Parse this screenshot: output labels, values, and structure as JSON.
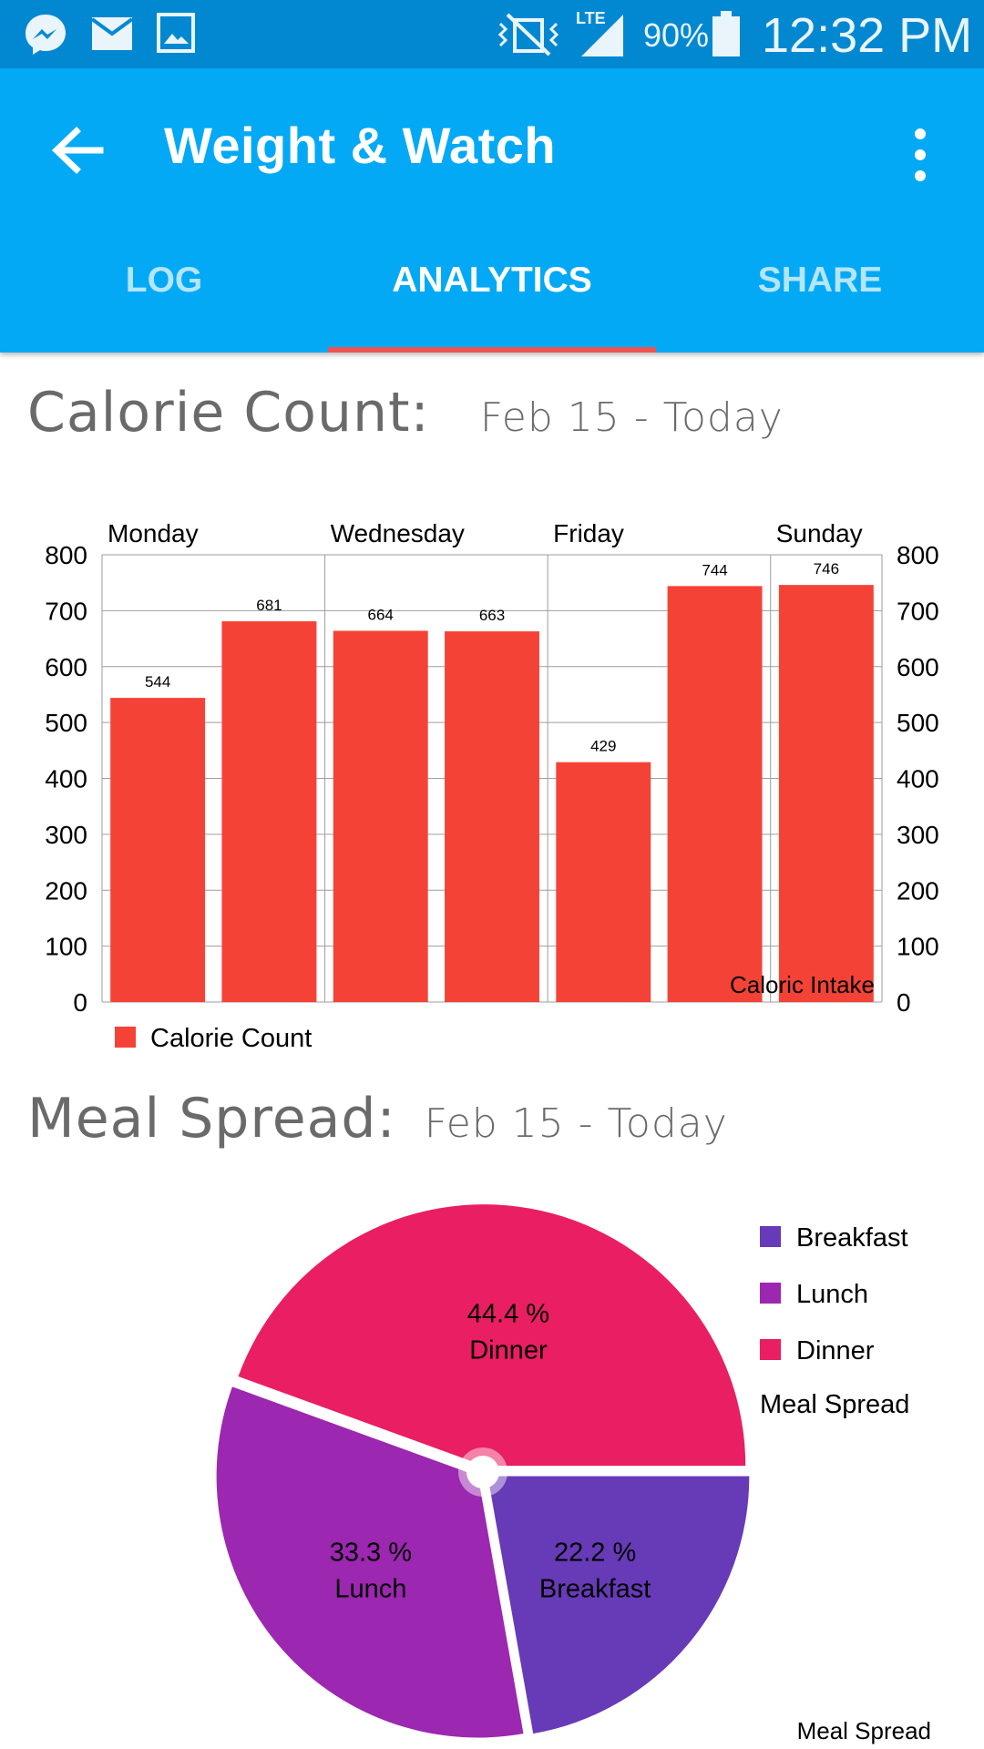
{
  "status_bar": {
    "battery": "90%",
    "time": "12:32 PM",
    "network": "LTE",
    "icons": [
      "messenger-icon",
      "mail-icon",
      "image-icon",
      "vibrate-icon",
      "signal-icon",
      "battery-icon"
    ]
  },
  "toolbar": {
    "title": "Weight & Watch",
    "back_icon": "arrow-back-icon",
    "menu_icon": "more-vert-icon"
  },
  "tabs": [
    {
      "label": "LOG",
      "active": false
    },
    {
      "label": "ANALYTICS",
      "active": true
    },
    {
      "label": "SHARE",
      "active": false
    }
  ],
  "calorie_section": {
    "title": "Calorie Count:",
    "range": "Feb 15 - Today"
  },
  "meal_section": {
    "title": "Meal Spread:",
    "range": "Feb 15 - Today"
  },
  "colors": {
    "status_bar": "#0288d1",
    "toolbar": "#03a9f4",
    "tab_indicator": "#ef5350",
    "bar": "#f44336",
    "breakfast": "#673ab7",
    "lunch": "#9c27b0",
    "dinner": "#e91e63"
  },
  "chart_data": [
    {
      "type": "bar",
      "categories": [
        "Monday",
        "",
        "Wednesday",
        "",
        "Friday",
        "",
        "Sunday"
      ],
      "top_labels": [
        "Monday",
        "Wednesday",
        "Friday",
        "Sunday"
      ],
      "series": [
        {
          "name": "Calorie Count",
          "values": [
            544,
            681,
            664,
            663,
            429,
            744,
            746
          ]
        }
      ],
      "ylim": [
        0,
        800
      ],
      "yticks": [
        "0",
        "100",
        "200",
        "300",
        "400",
        "500",
        "600",
        "700",
        "800"
      ],
      "description_label": "Caloric Intake",
      "legend": "bottom-left",
      "grid": true
    },
    {
      "type": "pie",
      "slices": [
        {
          "name": "Breakfast",
          "value": 22.2,
          "percent_label": "22.2 %"
        },
        {
          "name": "Lunch",
          "value": 33.3,
          "percent_label": "33.3 %"
        },
        {
          "name": "Dinner",
          "value": 44.4,
          "percent_label": "44.4 %"
        }
      ],
      "legend_title": "Meal Spread",
      "description_label": "Meal Spread",
      "legend": "top-right"
    }
  ]
}
